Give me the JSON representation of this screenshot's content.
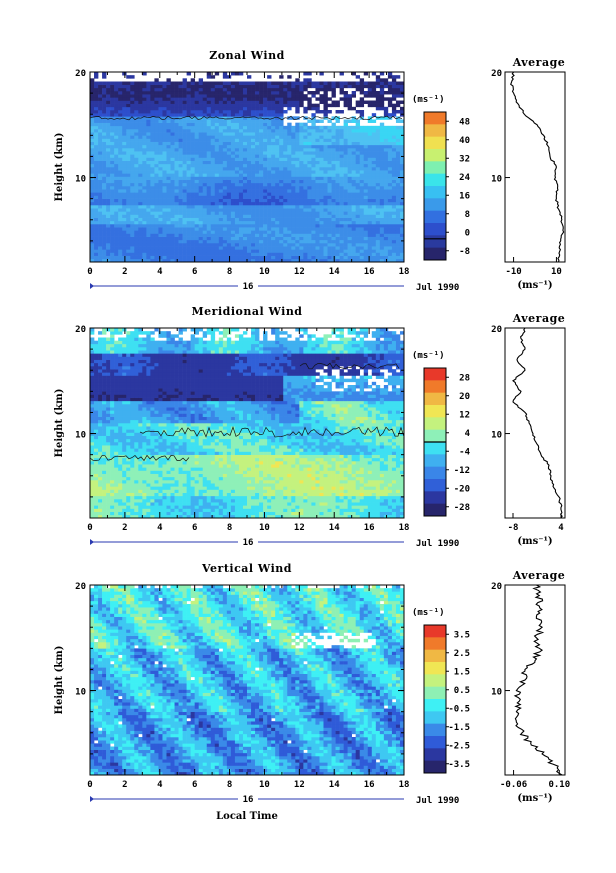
{
  "chart_data": [
    {
      "type": "heatmap",
      "title": "Zonal Wind",
      "ylabel": "Height (km)",
      "x_ticks": [
        "0",
        "2",
        "4",
        "6",
        "8",
        "10",
        "12",
        "14",
        "16",
        "18"
      ],
      "y_ticks": [
        "20",
        "10"
      ],
      "xlim": [
        0,
        18
      ],
      "ylim": [
        2,
        20
      ],
      "date_mark": "16",
      "date_label": "Jul 1990",
      "colorbar": {
        "unit": "(ms⁻¹)",
        "levels": [
          "48",
          "40",
          "32",
          "24",
          "16",
          "8",
          "0",
          "-8"
        ]
      },
      "average": {
        "title": "Average",
        "x_ticks": [
          "-10",
          "10"
        ],
        "xlim": [
          -14,
          14
        ],
        "xlabel": "(ms⁻¹)",
        "y_ticks": [
          "20",
          "10"
        ],
        "profile": {
          "height": [
            2,
            3,
            4,
            5,
            6,
            7,
            8,
            9,
            10,
            11,
            12,
            13,
            14,
            15,
            16,
            17,
            18,
            19,
            20
          ],
          "value": [
            11,
            11.5,
            12,
            13,
            12.5,
            11,
            10,
            10.5,
            9.5,
            10,
            7,
            6,
            4,
            1,
            -5,
            -8,
            -10,
            -11,
            -10
          ]
        }
      }
    },
    {
      "type": "heatmap",
      "title": "Meridional Wind",
      "ylabel": "Height (km)",
      "x_ticks": [
        "0",
        "2",
        "4",
        "6",
        "8",
        "10",
        "12",
        "14",
        "16",
        "18"
      ],
      "y_ticks": [
        "20",
        "10"
      ],
      "xlim": [
        0,
        18
      ],
      "ylim": [
        2,
        20
      ],
      "date_mark": "16",
      "date_label": "Jul 1990",
      "colorbar": {
        "unit": "(ms⁻¹)",
        "levels": [
          "28",
          "20",
          "12",
          "4",
          "-4",
          "-12",
          "-20",
          "-28"
        ]
      },
      "average": {
        "title": "Average",
        "x_ticks": [
          "-8",
          "4"
        ],
        "xlim": [
          -10,
          5
        ],
        "xlabel": "(ms⁻¹)",
        "y_ticks": [
          "20",
          "10"
        ],
        "profile": {
          "height": [
            2,
            3,
            4,
            5,
            6,
            7,
            8,
            9,
            10,
            11,
            12,
            13,
            14,
            15,
            16,
            17,
            18,
            19,
            20
          ],
          "value": [
            4,
            4,
            3.5,
            2,
            1.5,
            1,
            -1,
            -2,
            -3,
            -4,
            -5,
            -8,
            -6,
            -8,
            -5,
            -7,
            -5,
            -6,
            -5
          ]
        }
      }
    },
    {
      "type": "heatmap",
      "title": "Vertical Wind",
      "ylabel": "Height (km)",
      "xlabel": "Local Time",
      "x_ticks": [
        "0",
        "2",
        "4",
        "6",
        "8",
        "10",
        "12",
        "14",
        "16",
        "18"
      ],
      "y_ticks": [
        "20",
        "10"
      ],
      "xlim": [
        0,
        18
      ],
      "ylim": [
        2,
        20
      ],
      "date_mark": "16",
      "date_label": "Jul 1990",
      "colorbar": {
        "unit": "(ms⁻¹)",
        "levels": [
          "3.5",
          "2.5",
          "1.5",
          "0.5",
          "-0.5",
          "-1.5",
          "-2.5",
          "-3.5"
        ]
      },
      "average": {
        "title": "Average",
        "x_ticks": [
          "-0.06",
          "0.10"
        ],
        "xlim": [
          -0.09,
          0.12
        ],
        "xlabel": "(ms⁻¹)",
        "y_ticks": [
          "20",
          "10"
        ],
        "profile": {
          "height": [
            2,
            3,
            4,
            5,
            6,
            7,
            8,
            9,
            10,
            11,
            12,
            13,
            14,
            15,
            16,
            17,
            18,
            19,
            20
          ],
          "value": [
            0.11,
            0.08,
            0.04,
            0.0,
            -0.03,
            -0.05,
            -0.05,
            -0.04,
            -0.05,
            -0.02,
            -0.02,
            0.02,
            0.03,
            0.02,
            0.04,
            0.02,
            0.03,
            0.03,
            0.02
          ]
        }
      }
    }
  ]
}
